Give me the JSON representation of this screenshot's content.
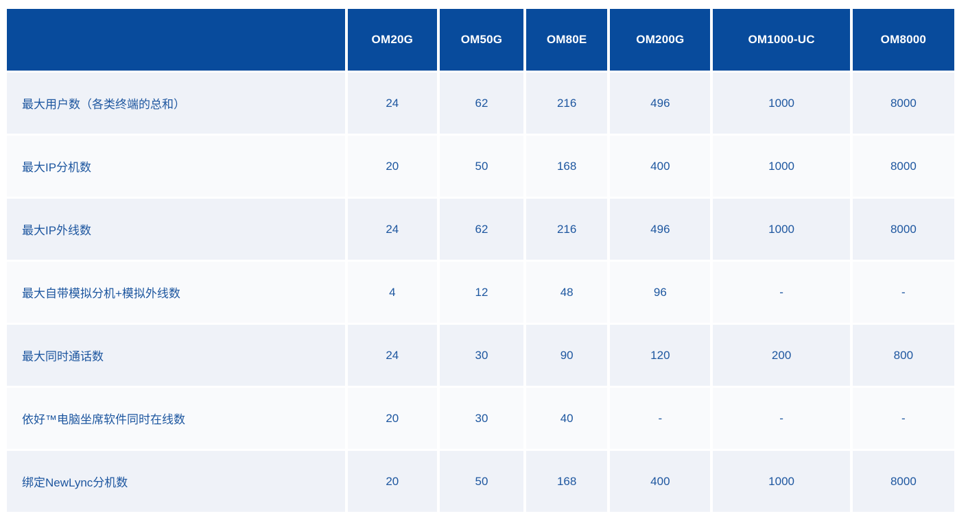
{
  "chart_data": {
    "type": "table",
    "title": "",
    "columns": [
      "",
      "OM20G",
      "OM50G",
      "OM80E",
      "OM200G",
      "OM1000-UC",
      "OM8000"
    ],
    "rows": [
      [
        "最大用户数（各类终端的总和）",
        24,
        62,
        216,
        496,
        1000,
        8000
      ],
      [
        "最大IP分机数",
        20,
        50,
        168,
        400,
        1000,
        8000
      ],
      [
        "最大IP外线数",
        24,
        62,
        216,
        496,
        1000,
        8000
      ],
      [
        "最大自带模拟分机+模拟外线数",
        4,
        12,
        48,
        96,
        "-",
        "-"
      ],
      [
        "最大同时通话数",
        24,
        30,
        90,
        120,
        200,
        800
      ],
      [
        "依好™电脑坐席软件同时在线数",
        20,
        30,
        40,
        "-",
        "-",
        "-"
      ],
      [
        "绑定NewLync分机数",
        20,
        50,
        168,
        400,
        1000,
        8000
      ]
    ],
    "layout_hints": {
      "header_position": "top",
      "row_striping": "alternating, first data row darker",
      "grid": "white 3-4px gaps between all cells"
    }
  },
  "colors": {
    "header_bg": "#084B9C",
    "header_text": "#FFFFFF",
    "row_odd_bg": "#EFF2F8",
    "row_even_bg": "#F9FAFC",
    "cell_text": "#1D569F",
    "page_bg": "#FFFFFF"
  }
}
